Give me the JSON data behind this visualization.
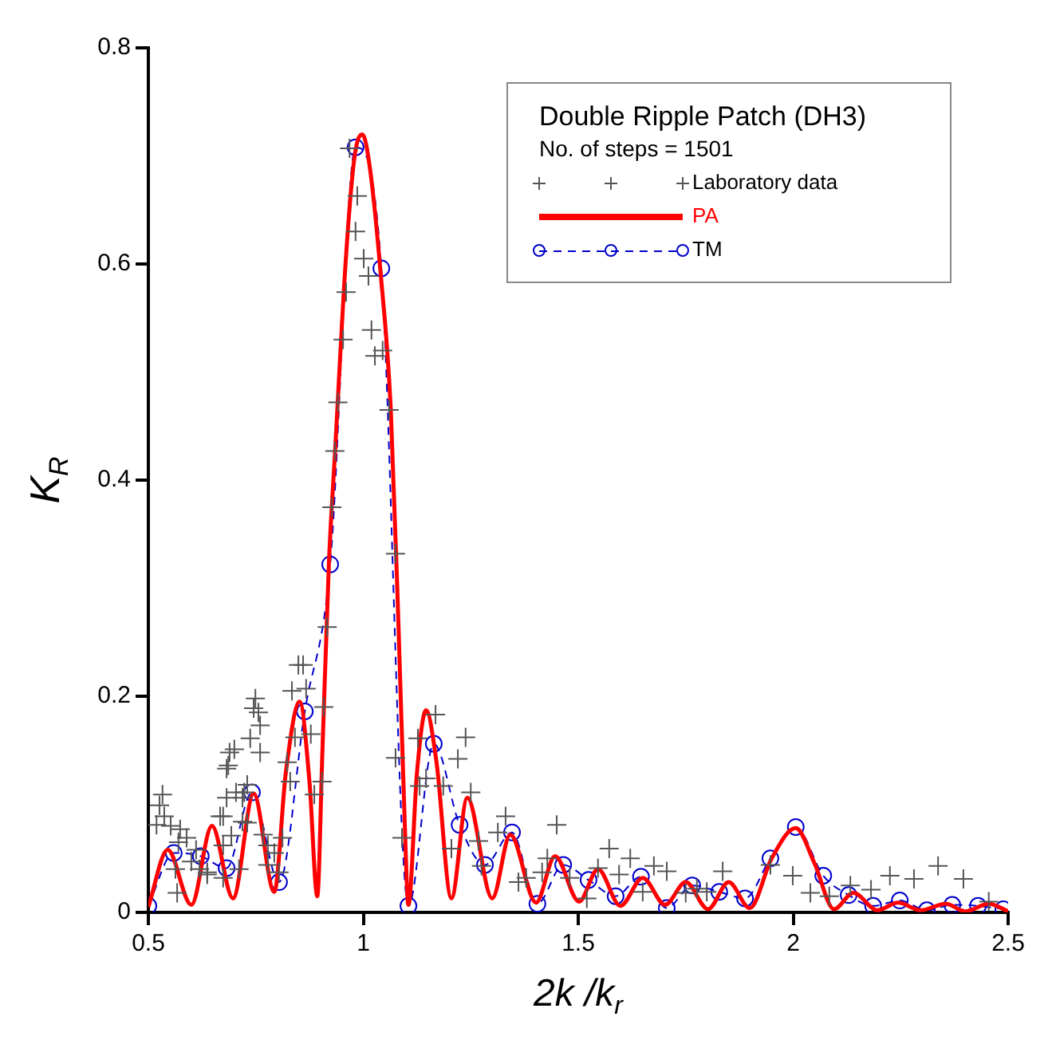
{
  "chart_data": {
    "type": "line",
    "xlabel": "2k /k$_{r}$",
    "ylabel": "K$_{R}$",
    "legend_title": "Double Ripple Patch (DH3)",
    "annotations": [
      "No. of steps = 1501"
    ],
    "legend": "top right",
    "grid": false,
    "xlim": [
      0.5,
      2.5
    ],
    "xticks": [
      0.5,
      1,
      1.5,
      2,
      2.5
    ],
    "ylim": [
      0,
      0.8
    ],
    "yticks": [
      0,
      0.2,
      0.4,
      0.6,
      0.8
    ],
    "series": [
      {
        "name": "Laboratory data",
        "type": "scatter",
        "marker": "cross",
        "color": "#555555",
        "x": [
          0.533,
          0.526,
          0.537,
          0.519,
          0.552,
          0.574,
          0.589,
          0.57,
          0.611,
          0.6,
          0.563,
          0.619,
          0.637,
          0.674,
          0.711,
          0.567,
          0.693,
          0.674,
          0.73,
          0.667,
          0.719,
          0.73,
          0.686,
          0.682,
          0.689,
          0.7,
          0.756,
          0.749,
          0.745,
          0.76,
          0.737,
          0.76,
          0.682,
          0.674,
          0.704,
          0.719,
          0.723,
          0.767,
          0.778,
          0.812,
          0.793,
          0.778,
          0.804,
          0.83,
          0.823,
          0.841,
          0.834,
          0.849,
          0.86,
          0.867,
          0.878,
          0.886,
          0.904,
          0.908,
          0.637,
          0.916,
          0.927,
          0.934,
          0.941,
          0.953,
          0.96,
          0.982,
          0.986,
          0.968,
          1.001,
          1.012,
          1.019,
          1.027,
          1.045,
          1.06,
          1.075,
          1.09,
          1.075,
          1.131,
          1.127,
          1.168,
          1.238,
          1.22,
          1.186,
          1.146,
          1.25,
          1.205,
          1.268,
          1.275,
          1.331,
          1.313,
          1.361,
          1.379,
          1.416,
          1.45,
          1.428,
          1.48,
          1.52,
          1.546,
          1.572,
          1.595,
          1.621,
          1.65,
          1.676,
          1.706,
          1.75,
          1.776,
          1.836,
          1.799,
          1.947,
          1.999,
          2.04,
          2.084,
          2.133,
          2.181,
          2.225,
          2.281,
          2.337,
          2.396,
          2.455
        ],
        "values": [
          0.109,
          0.099,
          0.089,
          0.081,
          0.08,
          0.077,
          0.069,
          0.065,
          0.058,
          0.047,
          0.04,
          0.04,
          0.035,
          0.032,
          0.04,
          0.018,
          0.071,
          0.062,
          0.083,
          0.089,
          0.106,
          0.118,
          0.136,
          0.133,
          0.148,
          0.151,
          0.185,
          0.198,
          0.189,
          0.173,
          0.161,
          0.148,
          0.106,
          0.089,
          0.111,
          0.084,
          0.111,
          0.072,
          0.062,
          0.069,
          0.055,
          0.044,
          0.037,
          0.121,
          0.139,
          0.162,
          0.205,
          0.229,
          0.229,
          0.207,
          0.165,
          0.109,
          0.121,
          0.19,
          0.037,
          0.264,
          0.375,
          0.427,
          0.472,
          0.53,
          0.574,
          0.63,
          0.663,
          0.707,
          0.605,
          0.589,
          0.539,
          0.515,
          0.52,
          0.465,
          0.332,
          0.069,
          0.143,
          0.117,
          0.161,
          0.183,
          0.162,
          0.142,
          0.117,
          0.124,
          0.111,
          0.059,
          0.066,
          0.043,
          0.089,
          0.074,
          0.028,
          0.032,
          0.037,
          0.081,
          0.05,
          0.032,
          0.013,
          0.041,
          0.059,
          0.035,
          0.05,
          0.019,
          0.043,
          0.038,
          0.018,
          0.022,
          0.038,
          0.019,
          0.044,
          0.034,
          0.018,
          0.015,
          0.025,
          0.021,
          0.034,
          0.031,
          0.043,
          0.031,
          0.01
        ]
      },
      {
        "name": "PA",
        "marker": "none",
        "line_style": "solid",
        "color": "#ff0000",
        "x": [
          0.5,
          0.545,
          0.6,
          0.648,
          0.697,
          0.745,
          0.793,
          0.82,
          0.852,
          0.875,
          0.893,
          0.905,
          0.92,
          0.934,
          0.96,
          0.98,
          0.998,
          1.015,
          1.04,
          1.064,
          1.082,
          1.095,
          1.105,
          1.125,
          1.146,
          1.17,
          1.205,
          1.242,
          1.3,
          1.342,
          1.402,
          1.446,
          1.502,
          1.546,
          1.598,
          1.65,
          1.702,
          1.75,
          1.802,
          1.85,
          1.899,
          1.95,
          2.006,
          2.05,
          2.095,
          2.14,
          2.196,
          2.244,
          2.296,
          2.355,
          2.4,
          2.455,
          2.5
        ],
        "values": [
          0.005,
          0.058,
          0.007,
          0.08,
          0.013,
          0.11,
          0.019,
          0.13,
          0.195,
          0.12,
          0.015,
          0.15,
          0.323,
          0.424,
          0.608,
          0.7,
          0.72,
          0.69,
          0.593,
          0.465,
          0.264,
          0.1,
          0.007,
          0.13,
          0.187,
          0.14,
          0.013,
          0.106,
          0.013,
          0.072,
          0.009,
          0.052,
          0.01,
          0.04,
          0.006,
          0.032,
          0.007,
          0.028,
          0.003,
          0.028,
          0.004,
          0.05,
          0.078,
          0.045,
          0.003,
          0.018,
          0.002,
          0.009,
          0.002,
          0.008,
          0.001,
          0.008,
          0.001
        ]
      },
      {
        "name": "TM",
        "marker": "circle",
        "line_style": "dashed",
        "color": "#0000cc",
        "x": [
          0.5,
          0.559,
          0.622,
          0.682,
          0.741,
          0.804,
          0.864,
          0.923,
          0.982,
          1.042,
          1.105,
          1.164,
          1.224,
          1.283,
          1.346,
          1.405,
          1.465,
          1.524,
          1.587,
          1.646,
          1.706,
          1.765,
          1.828,
          1.888,
          1.947,
          2.006,
          2.07,
          2.129,
          2.186,
          2.248,
          2.311,
          2.37,
          2.43,
          2.489
        ],
        "values": [
          0.006,
          0.055,
          0.052,
          0.041,
          0.111,
          0.028,
          0.186,
          0.322,
          0.708,
          0.596,
          0.006,
          0.156,
          0.081,
          0.044,
          0.074,
          0.008,
          0.044,
          0.03,
          0.015,
          0.033,
          0.004,
          0.025,
          0.019,
          0.013,
          0.05,
          0.079,
          0.034,
          0.016,
          0.006,
          0.011,
          0.002,
          0.007,
          0.006,
          0.003
        ]
      }
    ]
  }
}
